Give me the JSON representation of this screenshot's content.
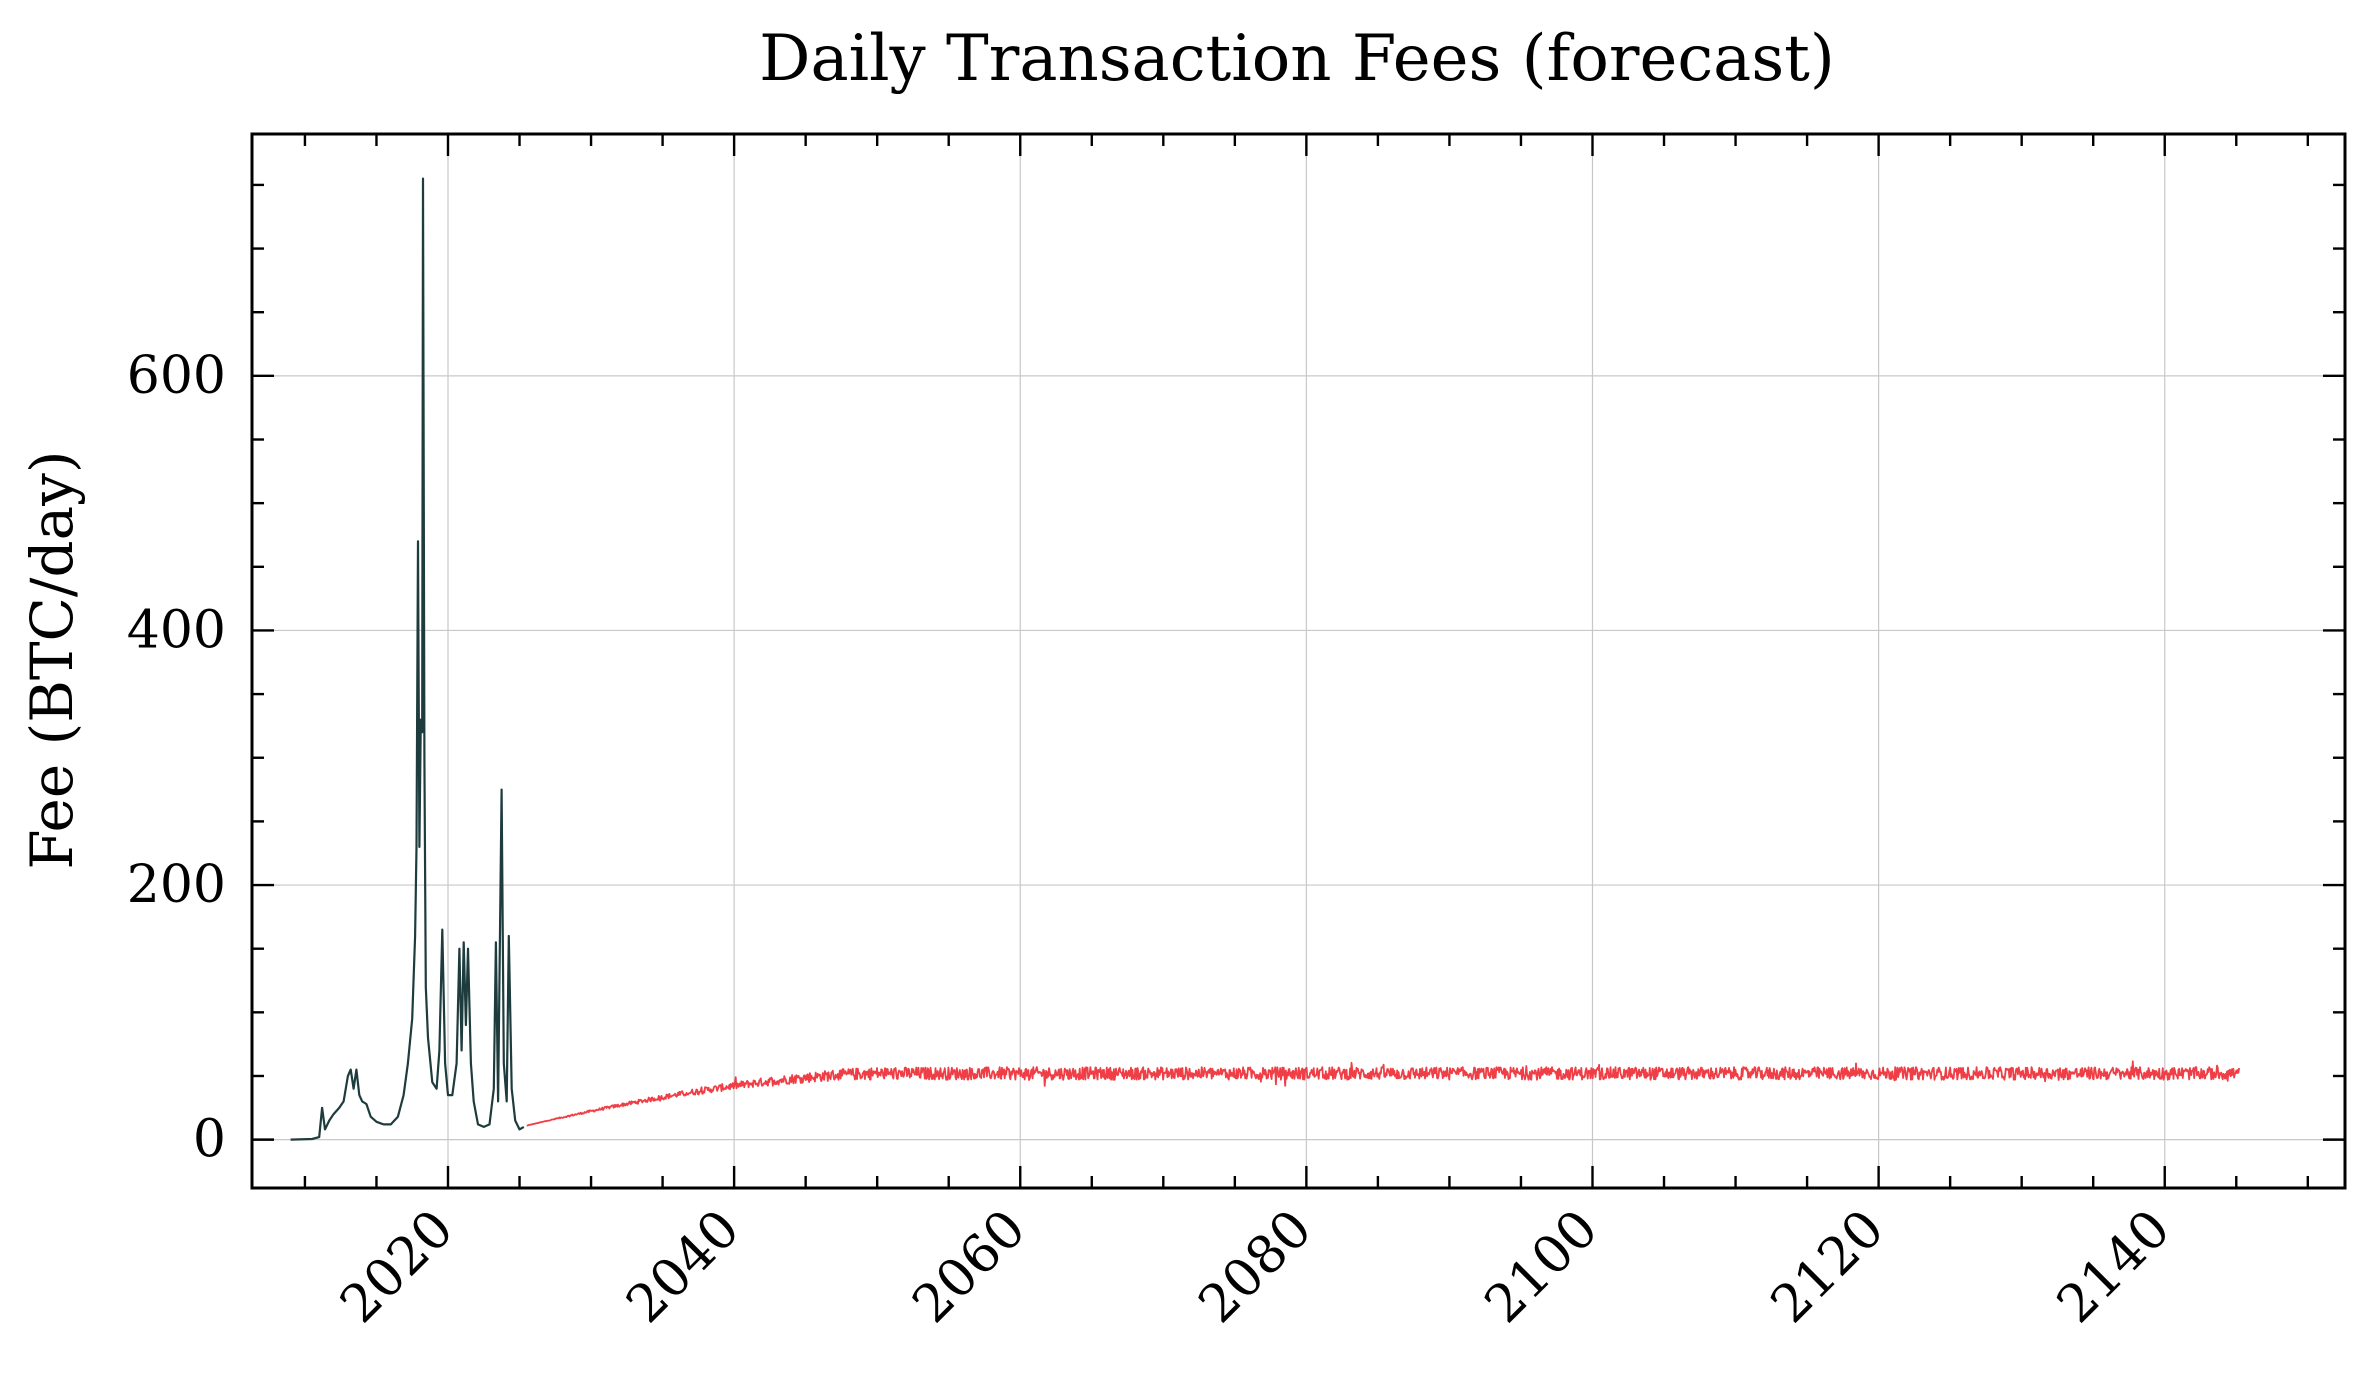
{
  "chart_data": {
    "type": "line",
    "title": "Daily Transaction Fees (forecast)",
    "xlabel": "",
    "ylabel": "Fee (BTC/day)",
    "xlim": [
      2006.3,
      2152.6
    ],
    "ylim": [
      -38,
      790
    ],
    "x_ticks": [
      2020,
      2040,
      2060,
      2080,
      2100,
      2120,
      2140
    ],
    "x_tick_labels": [
      "2020",
      "2040",
      "2060",
      "2080",
      "2100",
      "2120",
      "2140"
    ],
    "y_ticks": [
      0,
      200,
      400,
      600
    ],
    "y_tick_labels": [
      "0",
      "200",
      "400",
      "600"
    ],
    "grid": true,
    "legend": "none",
    "series": [
      {
        "color": "#1e3b3d",
        "points": [
          [
            2009.0,
            0
          ],
          [
            2010.5,
            0.5
          ],
          [
            2011.0,
            2
          ],
          [
            2011.2,
            25
          ],
          [
            2011.4,
            8
          ],
          [
            2011.7,
            15
          ],
          [
            2012.0,
            20
          ],
          [
            2012.4,
            25
          ],
          [
            2012.7,
            30
          ],
          [
            2013.0,
            50
          ],
          [
            2013.2,
            55
          ],
          [
            2013.4,
            40
          ],
          [
            2013.6,
            55
          ],
          [
            2013.8,
            35
          ],
          [
            2014.0,
            30
          ],
          [
            2014.3,
            28
          ],
          [
            2014.6,
            18
          ],
          [
            2015.0,
            14
          ],
          [
            2015.5,
            12
          ],
          [
            2016.0,
            12
          ],
          [
            2016.5,
            18
          ],
          [
            2016.9,
            35
          ],
          [
            2017.2,
            60
          ],
          [
            2017.5,
            95
          ],
          [
            2017.7,
            160
          ],
          [
            2017.8,
            230
          ],
          [
            2017.9,
            470
          ],
          [
            2018.0,
            230
          ],
          [
            2018.1,
            330
          ],
          [
            2018.2,
            320
          ],
          [
            2018.25,
            755
          ],
          [
            2018.35,
            300
          ],
          [
            2018.45,
            120
          ],
          [
            2018.6,
            80
          ],
          [
            2018.9,
            45
          ],
          [
            2019.2,
            40
          ],
          [
            2019.4,
            70
          ],
          [
            2019.6,
            165
          ],
          [
            2019.8,
            60
          ],
          [
            2020.0,
            35
          ],
          [
            2020.3,
            35
          ],
          [
            2020.6,
            60
          ],
          [
            2020.8,
            150
          ],
          [
            2020.95,
            70
          ],
          [
            2021.1,
            155
          ],
          [
            2021.25,
            90
          ],
          [
            2021.4,
            150
          ],
          [
            2021.6,
            60
          ],
          [
            2021.8,
            30
          ],
          [
            2022.1,
            12
          ],
          [
            2022.5,
            10
          ],
          [
            2022.9,
            12
          ],
          [
            2023.2,
            40
          ],
          [
            2023.35,
            155
          ],
          [
            2023.5,
            30
          ],
          [
            2023.75,
            275
          ],
          [
            2023.9,
            60
          ],
          [
            2024.1,
            30
          ],
          [
            2024.25,
            160
          ],
          [
            2024.45,
            40
          ],
          [
            2024.7,
            15
          ],
          [
            2025.0,
            8
          ],
          [
            2025.3,
            10
          ]
        ]
      },
      {
        "color": "#ef3e46",
        "model": {
          "start": [
            2025.5,
            11
          ],
          "plateau": 52,
          "plateau_reached": 2050,
          "end": 2145.2,
          "noise": 5
        }
      }
    ]
  }
}
